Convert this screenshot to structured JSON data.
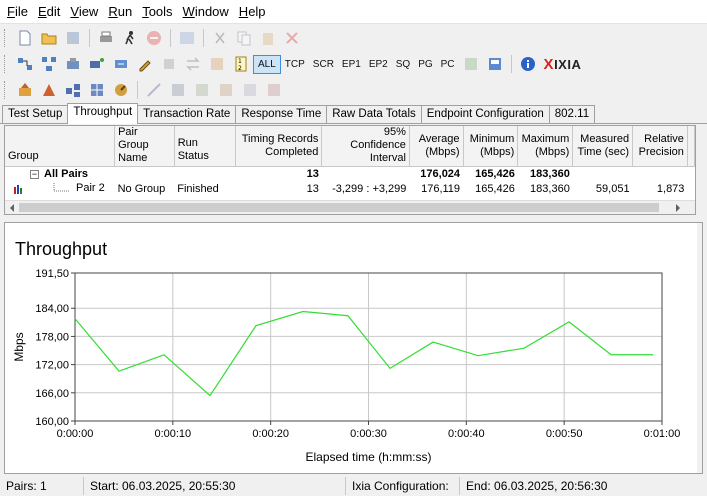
{
  "menu": [
    "File",
    "Edit",
    "View",
    "Run",
    "Tools",
    "Window",
    "Help"
  ],
  "menu_mnemonics": [
    "F",
    "E",
    "V",
    "R",
    "T",
    "W",
    "H"
  ],
  "toolbar2": {
    "protocols": [
      "ALL",
      "TCP",
      "SCR",
      "EP1",
      "EP2",
      "SQ",
      "PG",
      "PC"
    ],
    "active": "ALL",
    "brand": "IXIA"
  },
  "tabs": [
    "Test Setup",
    "Throughput",
    "Transaction Rate",
    "Response Time",
    "Raw Data Totals",
    "Endpoint Configuration",
    "802.11"
  ],
  "active_tab": "Throughput",
  "grid": {
    "headers": [
      "Group",
      "Pair Group Name",
      "Run Status",
      "Timing Records Completed",
      "95% Confidence Interval",
      "Average (Mbps)",
      "Minimum (Mbps)",
      "Maximum (Mbps)",
      "Measured Time (sec)",
      "Relative Precision"
    ],
    "rows": [
      {
        "group": "All Pairs",
        "pair_group": "",
        "status": "",
        "records": "13",
        "ci": "",
        "avg": "176,024",
        "min": "165,426",
        "max": "183,360",
        "time": "",
        "rel": ""
      },
      {
        "group": "Pair 2",
        "pair_group": "No Group",
        "status": "Finished",
        "records": "13",
        "ci": "-3,299 : +3,299",
        "avg": "176,119",
        "min": "165,426",
        "max": "183,360",
        "time": "59,051",
        "rel": "1,873"
      }
    ]
  },
  "chart_title": "Throughput",
  "chart_data": {
    "type": "line",
    "title": "Throughput",
    "xlabel": "Elapsed time (h:mm:ss)",
    "ylabel": "Mbps",
    "ylim": [
      160.0,
      191.5
    ],
    "xlim": [
      0,
      60
    ],
    "y_ticks": [
      "191,50",
      "184,00",
      "178,00",
      "172,00",
      "166,00",
      "160,00"
    ],
    "x_ticks": [
      "0:00:00",
      "0:00:10",
      "0:00:20",
      "0:00:30",
      "0:00:40",
      "0:00:50",
      "0:01:00"
    ],
    "grid": true,
    "color": "#33dd33",
    "series": [
      {
        "x": [
          0,
          4.5,
          9.1,
          13.8,
          18.5,
          23.3,
          27.9,
          32.2,
          36.6,
          41.2,
          45.9,
          50.5,
          54.8,
          59.1
        ],
        "values": [
          181.8,
          170.6,
          174.1,
          165.4,
          180.3,
          183.3,
          182.4,
          171.2,
          176.8,
          173.9,
          175.5,
          181.1,
          174.1,
          174.1
        ]
      }
    ]
  },
  "status": {
    "pairs": "Pairs: 1",
    "start": "Start: 06.03.2025, 20:55:30",
    "ixia_config": "Ixia Configuration:",
    "end": "End: 06.03.2025, 20:56:30"
  }
}
